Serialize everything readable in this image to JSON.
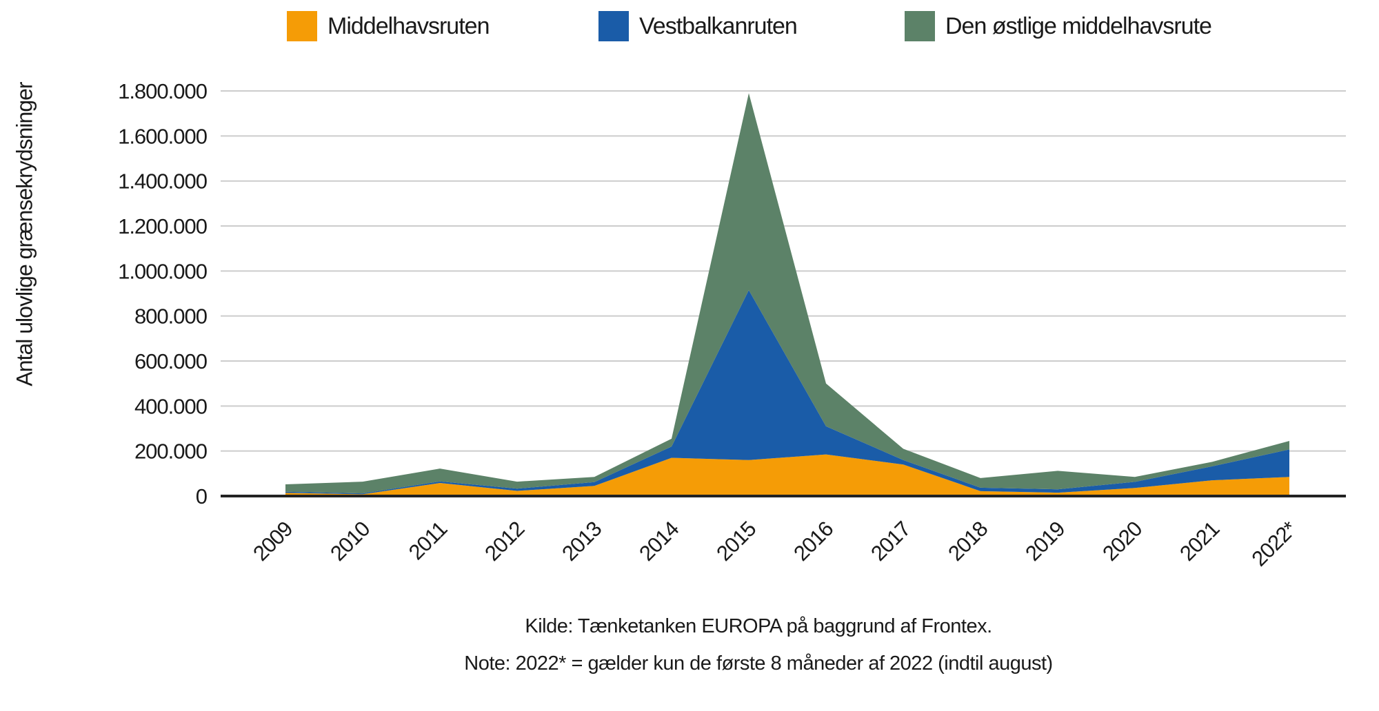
{
  "legend": [
    {
      "label": "Middelhavsruten",
      "color": "#F59C06"
    },
    {
      "label": "Vestbalkanruten",
      "color": "#1A5CA8"
    },
    {
      "label": "Den østlige middelhavsrute",
      "color": "#5C8268"
    }
  ],
  "y_axis": {
    "title": "Antal ulovlige grænsekrydsninger",
    "tick_labels": [
      "1.800.000",
      "1.600.000",
      "1.400.000",
      "1.200.000",
      "1.000.000",
      "800.000",
      "600.000",
      "400.000",
      "200.000",
      "0"
    ],
    "tick_values": [
      1800000,
      1600000,
      1400000,
      1200000,
      1000000,
      800000,
      600000,
      400000,
      200000,
      0
    ]
  },
  "footer": {
    "source": "Kilde: Tænketanken EUROPA på baggrund af Frontex.",
    "note": "Note: 2022* = gælder kun de første 8 måneder af 2022 (indtil august)"
  },
  "chart_data": {
    "type": "area",
    "stacked": true,
    "title": "",
    "xlabel": "",
    "ylabel": "Antal ulovlige grænsekrydsninger",
    "ylim": [
      0,
      1800000
    ],
    "y_tick_step": 200000,
    "grid": true,
    "legend_position": "top",
    "categories": [
      "2009",
      "2010",
      "2011",
      "2012",
      "2013",
      "2014",
      "2015",
      "2016",
      "2017",
      "2018",
      "2019",
      "2020",
      "2021",
      "2022*"
    ],
    "series": [
      {
        "name": "Middelhavsruten",
        "color": "#F59C06",
        "values": [
          14000,
          8000,
          58000,
          23000,
          45000,
          170000,
          160000,
          185000,
          140000,
          22000,
          15000,
          36000,
          70000,
          85000
        ]
      },
      {
        "name": "Vestbalkanruten",
        "color": "#1A5CA8",
        "values": [
          5000,
          4000,
          7000,
          10000,
          17000,
          50000,
          755000,
          125000,
          20000,
          15000,
          15000,
          27000,
          62000,
          122000
        ]
      },
      {
        "name": "Den østlige middelhavsrute",
        "color": "#5C8268",
        "values": [
          33000,
          52000,
          57000,
          31000,
          23000,
          35000,
          875000,
          190000,
          50000,
          43000,
          82000,
          22000,
          20000,
          38000
        ]
      }
    ],
    "stacked_totals": [
      52000,
      64000,
      122000,
      64000,
      85000,
      255000,
      1790000,
      500000,
      210000,
      80000,
      112000,
      85000,
      152000,
      245000
    ],
    "colors": {
      "gridline": "#CCCCCC",
      "axis": "#222222",
      "text": "#1A1A1A",
      "background": "#FFFFFF"
    }
  }
}
